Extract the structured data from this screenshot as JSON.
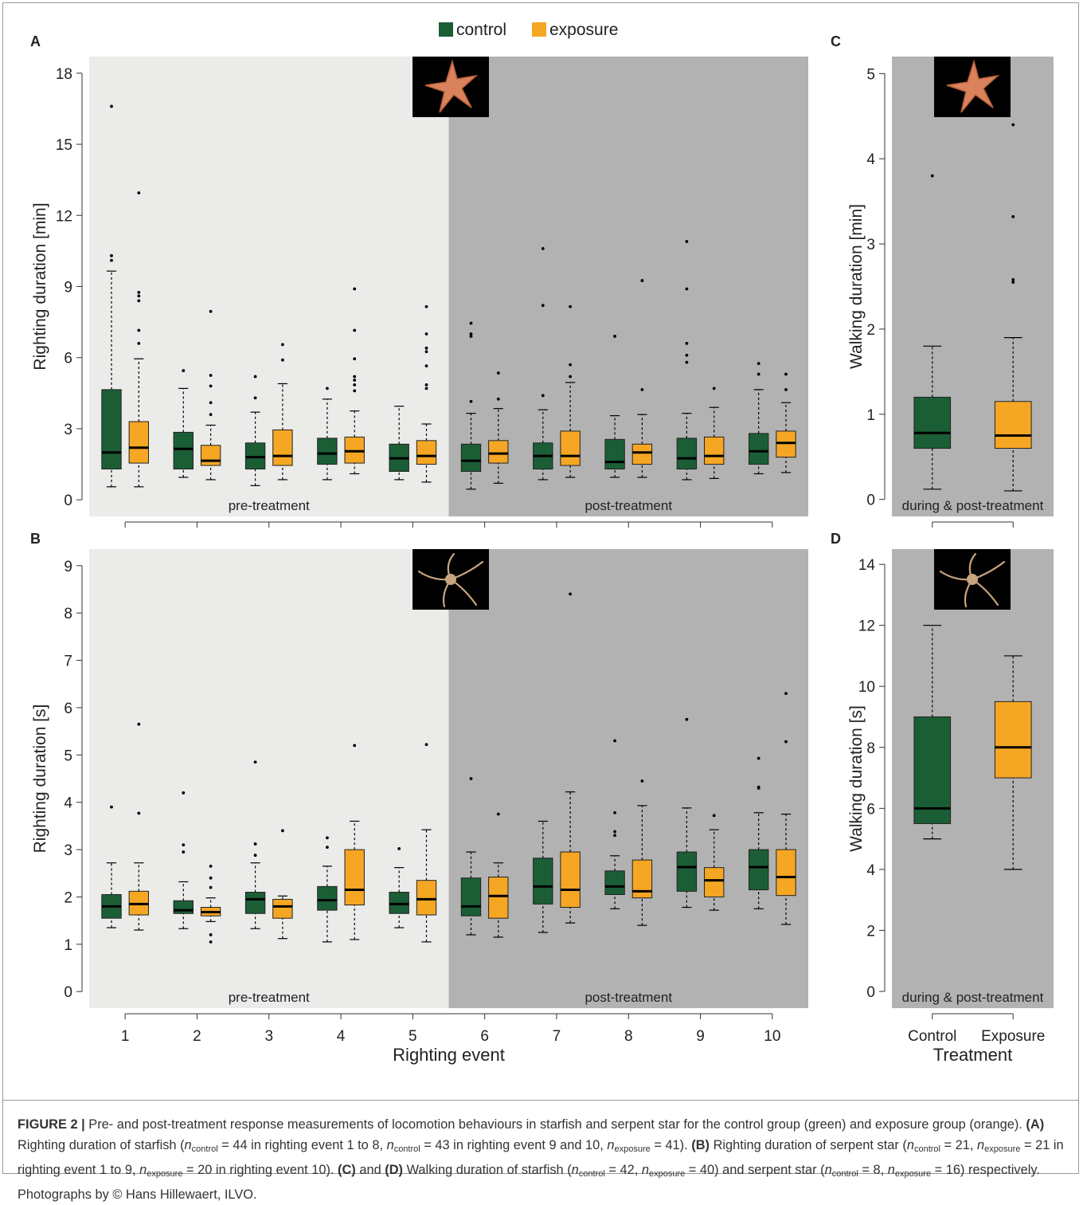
{
  "chart_data": [
    {
      "type": "box",
      "label": "A",
      "ylabel": "Righting duration [min]",
      "categories": [
        null,
        null,
        null,
        null,
        null,
        null,
        null,
        null,
        null,
        null
      ],
      "regions": [
        {
          "label": "pre-treatment",
          "color": "#ebebe9"
        },
        {
          "label": "post-treatment",
          "color": "#b3b2b2"
        }
      ],
      "ylim": [
        -0.7,
        18.7
      ],
      "yticks": [
        0,
        3,
        6,
        9,
        12,
        15,
        18
      ],
      "series": [
        {
          "name": "control",
          "color": "#1b5e36",
          "low": [
            0.55,
            0.95,
            0.6,
            0.85,
            0.85,
            0.45,
            0.85,
            0.95,
            0.85,
            1.1
          ],
          "q1": [
            1.3,
            1.3,
            1.3,
            1.5,
            1.2,
            1.2,
            1.3,
            1.3,
            1.3,
            1.5
          ],
          "median": [
            2.0,
            2.15,
            1.8,
            1.95,
            1.75,
            1.65,
            1.85,
            1.6,
            1.75,
            2.05
          ],
          "q3": [
            4.65,
            2.85,
            2.4,
            2.6,
            2.35,
            2.35,
            2.4,
            2.55,
            2.6,
            2.8
          ],
          "high": [
            9.65,
            4.7,
            3.7,
            4.25,
            3.95,
            3.65,
            3.8,
            3.55,
            3.65,
            4.65
          ],
          "outliers": [
            [
              10.1,
              10.3,
              16.6
            ],
            [
              5.45
            ],
            [
              4.3,
              5.2
            ],
            [
              4.7
            ],
            [],
            [
              4.15,
              6.9,
              7.0,
              7.45
            ],
            [
              4.4,
              8.2,
              10.6
            ],
            [
              6.9
            ],
            [
              5.8,
              6.1,
              6.6,
              8.9,
              10.9
            ],
            [
              5.3,
              5.75
            ]
          ]
        },
        {
          "name": "exposure",
          "color": "#f5a623",
          "low": [
            0.55,
            0.85,
            0.85,
            1.1,
            0.75,
            0.7,
            0.95,
            0.95,
            0.9,
            1.15
          ],
          "q1": [
            1.55,
            1.45,
            1.45,
            1.55,
            1.5,
            1.55,
            1.45,
            1.5,
            1.5,
            1.8
          ],
          "median": [
            2.2,
            1.65,
            1.85,
            2.05,
            1.85,
            1.95,
            1.85,
            2.0,
            1.85,
            2.4
          ],
          "q3": [
            3.3,
            2.3,
            2.95,
            2.65,
            2.5,
            2.5,
            2.9,
            2.35,
            2.65,
            2.9
          ],
          "high": [
            5.95,
            3.15,
            4.9,
            3.75,
            3.2,
            3.85,
            4.95,
            3.6,
            3.9,
            4.1
          ],
          "outliers": [
            [
              6.6,
              7.15,
              8.4,
              8.6,
              8.75,
              12.95
            ],
            [
              3.6,
              4.1,
              4.8,
              5.25,
              7.95
            ],
            [
              5.9,
              6.55
            ],
            [
              4.6,
              4.85,
              5.05,
              5.2,
              5.95,
              7.15,
              8.9
            ],
            [
              4.7,
              4.85,
              5.65,
              6.25,
              6.4,
              7.0,
              8.15
            ],
            [
              4.25,
              5.35
            ],
            [
              5.2,
              5.7,
              8.15
            ],
            [
              4.65,
              9.25
            ],
            [
              4.7
            ],
            [
              4.65,
              5.3
            ]
          ]
        }
      ]
    },
    {
      "type": "box",
      "label": "B",
      "ylabel": "Righting duration [s]",
      "xlabel": "Righting event",
      "categories": [
        "1",
        "2",
        "3",
        "4",
        "5",
        "6",
        "7",
        "8",
        "9",
        "10"
      ],
      "regions": [
        {
          "label": "pre-treatment",
          "color": "#ebebe9"
        },
        {
          "label": "post-treatment",
          "color": "#b3b2b2"
        }
      ],
      "ylim": [
        -0.35,
        9.35
      ],
      "yticks": [
        0,
        1,
        2,
        3,
        4,
        5,
        6,
        7,
        8,
        9
      ],
      "series": [
        {
          "name": "control",
          "color": "#1b5e36",
          "low": [
            1.35,
            1.33,
            1.33,
            1.05,
            1.35,
            1.2,
            1.25,
            1.75,
            1.78,
            1.75
          ],
          "q1": [
            1.55,
            1.65,
            1.65,
            1.72,
            1.65,
            1.6,
            1.85,
            2.05,
            2.12,
            2.15
          ],
          "median": [
            1.8,
            1.72,
            1.95,
            1.93,
            1.85,
            1.8,
            2.22,
            2.22,
            2.63,
            2.63
          ],
          "q3": [
            2.05,
            1.92,
            2.1,
            2.22,
            2.1,
            2.4,
            2.82,
            2.55,
            2.95,
            3.0
          ],
          "high": [
            2.72,
            2.32,
            2.72,
            2.65,
            2.62,
            2.95,
            3.6,
            2.87,
            3.88,
            3.78
          ],
          "outliers": [
            [
              3.9
            ],
            [
              2.95,
              3.1,
              4.2
            ],
            [
              2.88,
              3.12,
              4.85
            ],
            [
              3.05,
              3.25
            ],
            [
              3.02
            ],
            [
              4.5
            ],
            [],
            [
              3.3,
              3.38,
              3.78,
              5.3
            ],
            [
              5.75
            ],
            [
              4.3,
              4.32,
              4.93
            ]
          ]
        },
        {
          "name": "exposure",
          "color": "#f5a623",
          "low": [
            1.3,
            1.48,
            1.12,
            1.1,
            1.05,
            1.15,
            1.45,
            1.4,
            1.72,
            1.42
          ],
          "q1": [
            1.62,
            1.6,
            1.55,
            1.83,
            1.62,
            1.55,
            1.78,
            1.98,
            2.0,
            2.03
          ],
          "median": [
            1.85,
            1.68,
            1.8,
            2.15,
            1.95,
            2.02,
            2.15,
            2.12,
            2.35,
            2.42
          ],
          "q3": [
            2.12,
            1.78,
            1.95,
            3.0,
            2.35,
            2.42,
            2.95,
            2.78,
            2.62,
            3.0
          ],
          "high": [
            2.72,
            1.98,
            2.02,
            3.6,
            3.42,
            2.72,
            4.22,
            3.93,
            3.42,
            3.75
          ],
          "outliers": [
            [
              3.77,
              5.65
            ],
            [
              1.05,
              1.2,
              2.2,
              2.4,
              2.65
            ],
            [
              3.4
            ],
            [
              5.2
            ],
            [
              5.22
            ],
            [
              3.75
            ],
            [
              8.4
            ],
            [
              4.45
            ],
            [
              3.72
            ],
            [
              5.28,
              6.3
            ]
          ]
        }
      ]
    },
    {
      "type": "box",
      "label": "C",
      "ylabel": "Walking duration [min]",
      "categories": [
        null,
        null
      ],
      "colors": [
        "#1b5e36",
        "#f5a623"
      ],
      "regions": [
        {
          "label": "during & post-treatment",
          "color": "#b3b2b2"
        }
      ],
      "ylim": [
        -0.2,
        5.2
      ],
      "yticks": [
        0,
        1,
        2,
        3,
        4,
        5
      ],
      "low": [
        0.12,
        0.1
      ],
      "q1": [
        0.6,
        0.6
      ],
      "median": [
        0.78,
        0.75
      ],
      "q3": [
        1.2,
        1.15
      ],
      "high": [
        1.8,
        1.9
      ],
      "outliers": [
        [
          3.8
        ],
        [
          2.55,
          2.58,
          3.32,
          4.4
        ]
      ]
    },
    {
      "type": "box",
      "label": "D",
      "ylabel": "Walking duration [s]",
      "xlabel": "Treatment",
      "categories": [
        "Control",
        "Exposure"
      ],
      "colors": [
        "#1b5e36",
        "#f5a623"
      ],
      "regions": [
        {
          "label": "during & post-treatment",
          "color": "#b3b2b2"
        }
      ],
      "ylim": [
        -0.55,
        14.5
      ],
      "yticks": [
        0,
        2,
        4,
        6,
        8,
        10,
        12,
        14
      ],
      "low": [
        5,
        4
      ],
      "q1": [
        5.5,
        7
      ],
      "median": [
        6,
        8
      ],
      "q3": [
        9,
        9.5
      ],
      "high": [
        12,
        11
      ],
      "outliers": [
        [],
        []
      ]
    }
  ],
  "caption": [
    {
      "text": "FIGURE 2 |",
      "style": "b"
    },
    {
      "text": " Pre- and post-treatment response measurements of locomotion behaviours in starfish and serpent star for the control group (green) and exposure group (orange). ",
      "style": "n"
    },
    {
      "text": "(A)",
      "style": "b"
    },
    {
      "text": " Righting duration of starfish (",
      "style": "n"
    },
    {
      "text": "n",
      "style": "i"
    },
    {
      "text": "control",
      "style": "sub"
    },
    {
      "text": " = 44 in righting event 1 to 8, ",
      "style": "n"
    },
    {
      "text": "n",
      "style": "i"
    },
    {
      "text": "control",
      "style": "sub"
    },
    {
      "text": " = 43 in righting event 9 and 10, ",
      "style": "n"
    },
    {
      "text": "n",
      "style": "i"
    },
    {
      "text": "exposure",
      "style": "sub"
    },
    {
      "text": " = 41). ",
      "style": "n"
    },
    {
      "text": "(B)",
      "style": "b"
    },
    {
      "text": " Righting duration of serpent star (",
      "style": "n"
    },
    {
      "text": "n",
      "style": "i"
    },
    {
      "text": "control",
      "style": "sub"
    },
    {
      "text": " = 21, ",
      "style": "n"
    },
    {
      "text": "n",
      "style": "i"
    },
    {
      "text": "exposure",
      "style": "sub"
    },
    {
      "text": " = 21 in righting event 1 to 9, ",
      "style": "n"
    },
    {
      "text": "n",
      "style": "i"
    },
    {
      "text": "exposure",
      "style": "sub"
    },
    {
      "text": " = 20 in righting event 10). ",
      "style": "n"
    },
    {
      "text": "(C)",
      "style": "b"
    },
    {
      "text": " and ",
      "style": "n"
    },
    {
      "text": "(D)",
      "style": "b"
    },
    {
      "text": " Walking duration of starfish (",
      "style": "n"
    },
    {
      "text": "n",
      "style": "i"
    },
    {
      "text": "control",
      "style": "sub"
    },
    {
      "text": " = 42, ",
      "style": "n"
    },
    {
      "text": "n",
      "style": "i"
    },
    {
      "text": "exposure",
      "style": "sub"
    },
    {
      "text": " = 40) and serpent star (",
      "style": "n"
    },
    {
      "text": "n",
      "style": "i"
    },
    {
      "text": "control",
      "style": "sub"
    },
    {
      "text": " = 8, ",
      "style": "n"
    },
    {
      "text": "n",
      "style": "i"
    },
    {
      "text": "exposure",
      "style": "sub"
    },
    {
      "text": " = 16) respectively. Photographs by © Hans Hillewaert, ILVO.",
      "style": "n"
    }
  ]
}
